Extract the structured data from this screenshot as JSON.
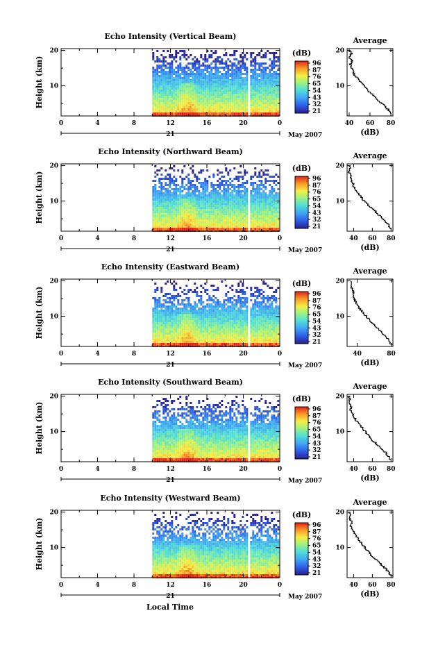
{
  "figure": {
    "date_label": "May 2007",
    "day_label": "21",
    "xlabel": "Local Time"
  },
  "chart_data": [
    {
      "type": "heatmap",
      "title": "Echo Intensity (Vertical Beam)",
      "ylabel": "Height (km)",
      "xlim": [
        0,
        24
      ],
      "ylim": [
        1.5,
        20.5
      ],
      "x_ticks": [
        "0",
        "4",
        "8",
        "12",
        "16",
        "20",
        "0"
      ],
      "y_ticks": [
        {
          "v": 20,
          "t": "20"
        },
        {
          "v": 10,
          "t": "10"
        }
      ],
      "data_start_hour": 10,
      "data_gap_hour": 20.5,
      "colorbar": {
        "label": "(dB)",
        "ticks": [
          "96",
          "87",
          "76",
          "65",
          "54",
          "43",
          "32",
          "21"
        ]
      },
      "profile": {
        "title": "Average",
        "xlabel": "(dB)",
        "xlim": [
          38,
          82
        ],
        "xticks": [
          40,
          60,
          80
        ],
        "h": [
          20,
          19,
          18,
          17,
          16,
          15,
          14,
          13,
          12,
          11,
          10,
          9,
          8,
          7,
          6,
          5,
          4,
          3,
          2
        ],
        "v": [
          40,
          42,
          40,
          43,
          41,
          42,
          44,
          45,
          48,
          51,
          54,
          57,
          60,
          64,
          67,
          71,
          75,
          78,
          81
        ]
      }
    },
    {
      "type": "heatmap",
      "title": "Echo Intensity (Northward Beam)",
      "ylabel": "Height (km)",
      "xlim": [
        0,
        24
      ],
      "ylim": [
        1.5,
        20.5
      ],
      "x_ticks": [
        "0",
        "4",
        "8",
        "12",
        "16",
        "20",
        "0"
      ],
      "y_ticks": [
        {
          "v": 20,
          "t": "20"
        },
        {
          "v": 10,
          "t": "10"
        }
      ],
      "data_start_hour": 10,
      "data_gap_hour": 20.5,
      "colorbar": {
        "label": "(dB)",
        "ticks": [
          "96",
          "87",
          "76",
          "65",
          "54",
          "43",
          "32",
          "21"
        ]
      },
      "profile": {
        "title": "Average",
        "xlabel": "(dB)",
        "xlim": [
          33,
          82
        ],
        "xticks": [
          40,
          60,
          80
        ],
        "h": [
          20,
          19,
          18,
          17,
          16,
          15,
          14,
          13,
          12,
          11,
          10,
          9,
          8,
          7,
          6,
          5,
          4,
          3,
          2
        ],
        "v": [
          35,
          36,
          35,
          37,
          37,
          39,
          40,
          42,
          45,
          48,
          51,
          55,
          59,
          63,
          67,
          71,
          74,
          78,
          80
        ]
      }
    },
    {
      "type": "heatmap",
      "title": "Echo Intensity (Eastward Beam)",
      "ylabel": "Height (km)",
      "xlim": [
        0,
        24
      ],
      "ylim": [
        1.5,
        20.5
      ],
      "x_ticks": [
        "0",
        "4",
        "8",
        "12",
        "16",
        "20",
        "0"
      ],
      "y_ticks": [
        {
          "v": 20,
          "t": "20"
        },
        {
          "v": 10,
          "t": "10"
        }
      ],
      "data_start_hour": 10,
      "data_gap_hour": 20.5,
      "colorbar": {
        "label": "(dB)",
        "ticks": [
          "96",
          "87",
          "76",
          "65",
          "54",
          "43",
          "32",
          "21"
        ]
      },
      "profile": {
        "title": "Average",
        "xlabel": "(dB)",
        "xlim": [
          28,
          82
        ],
        "xticks": [
          40,
          80
        ],
        "h": [
          20,
          19,
          18,
          17,
          16,
          15,
          14,
          13,
          12,
          11,
          10,
          9,
          8,
          7,
          6,
          5,
          4,
          3,
          2
        ],
        "v": [
          33,
          34,
          33,
          35,
          35,
          37,
          38,
          40,
          43,
          47,
          50,
          54,
          58,
          62,
          66,
          70,
          74,
          78,
          80
        ]
      }
    },
    {
      "type": "heatmap",
      "title": "Echo Intensity (Southward Beam)",
      "ylabel": "Height (km)",
      "xlim": [
        0,
        24
      ],
      "ylim": [
        1.5,
        20.5
      ],
      "x_ticks": [
        "0",
        "4",
        "8",
        "12",
        "16",
        "20",
        "0"
      ],
      "y_ticks": [
        {
          "v": 20,
          "t": "20"
        },
        {
          "v": 10,
          "t": "10"
        }
      ],
      "data_start_hour": 10,
      "data_gap_hour": 20.5,
      "colorbar": {
        "label": "(dB)",
        "ticks": [
          "96",
          "87",
          "76",
          "65",
          "54",
          "43",
          "32",
          "21"
        ]
      },
      "profile": {
        "title": "Average",
        "xlabel": "(dB)",
        "xlim": [
          33,
          82
        ],
        "xticks": [
          40,
          60,
          80
        ],
        "h": [
          20,
          19,
          18,
          17,
          16,
          15,
          14,
          13,
          12,
          11,
          10,
          9,
          8,
          7,
          6,
          5,
          4,
          3,
          2
        ],
        "v": [
          34,
          36,
          35,
          37,
          37,
          39,
          41,
          43,
          46,
          49,
          52,
          55,
          58,
          62,
          66,
          70,
          74,
          77,
          80
        ]
      }
    },
    {
      "type": "heatmap",
      "title": "Echo Intensity (Westward Beam)",
      "ylabel": "Height (km)",
      "xlim": [
        0,
        24
      ],
      "ylim": [
        1.5,
        20.5
      ],
      "x_ticks": [
        "0",
        "4",
        "8",
        "12",
        "16",
        "20",
        "0"
      ],
      "y_ticks": [
        {
          "v": 20,
          "t": "20"
        },
        {
          "v": 10,
          "t": "10"
        }
      ],
      "data_start_hour": 10,
      "data_gap_hour": 20.5,
      "colorbar": {
        "label": "(dB)",
        "ticks": [
          "96",
          "87",
          "76",
          "65",
          "54",
          "43",
          "32",
          "21"
        ]
      },
      "profile": {
        "title": "Average",
        "xlabel": "(dB)",
        "xlim": [
          33,
          82
        ],
        "xticks": [
          40,
          60,
          80
        ],
        "h": [
          20,
          19,
          18,
          17,
          16,
          15,
          14,
          13,
          12,
          11,
          10,
          9,
          8,
          7,
          6,
          5,
          4,
          3,
          2
        ],
        "v": [
          35,
          37,
          36,
          38,
          37,
          39,
          41,
          43,
          46,
          49,
          52,
          55,
          58,
          62,
          66,
          70,
          74,
          77,
          80
        ]
      }
    }
  ]
}
